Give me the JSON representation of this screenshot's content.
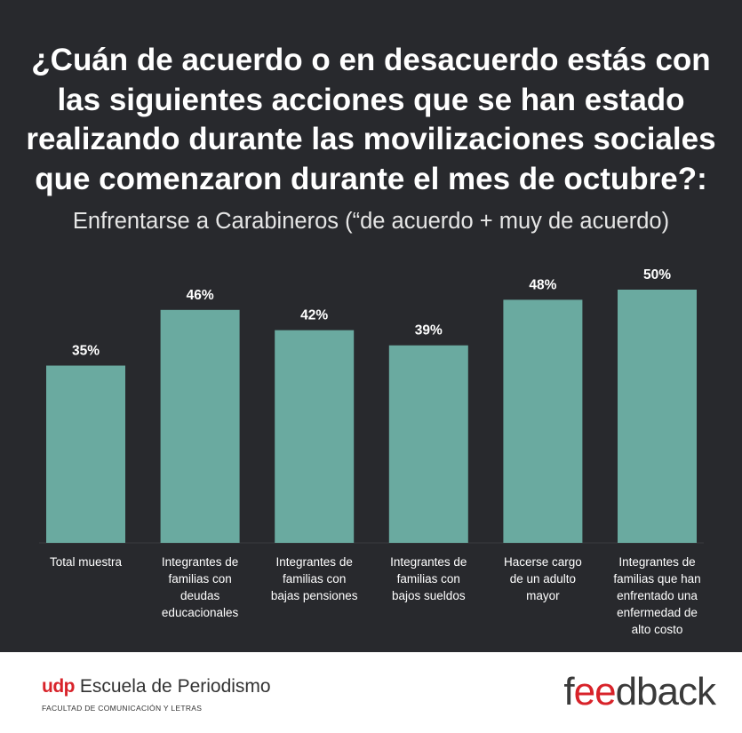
{
  "title": "¿Cuán de acuerdo o en desacuerdo estás con\nlas siguientes acciones que se han estado\nrealizando durante las movilizaciones sociales\nque comenzaron durante el mes de octubre?:",
  "subtitle": "Enfrentarse a Carabineros (“de acuerdo + muy de acuerdo)",
  "colors": {
    "background": "#28292d",
    "bar": "#6aaaa0",
    "accent": "#d8232a"
  },
  "chart_data": {
    "type": "bar",
    "title": "¿Cuán de acuerdo o en desacuerdo estás con las siguientes acciones que se han estado realizando durante las movilizaciones sociales que comenzaron durante el mes de octubre?:",
    "subtitle": "Enfrentarse a Carabineros (“de acuerdo + muy de acuerdo)",
    "categories": [
      "Total muestra",
      "Integrantes de\nfamilias con\ndeudas\neducacionales",
      "Integrantes de\nfamilias con\nbajas pensiones",
      "Integrantes de\nfamilias con\nbajos sueldos",
      "Hacerse cargo\nde un adulto\nmayor",
      "Integrantes de\nfamilias que han\nenfrentado una\nenfermedad de\nalto costo"
    ],
    "values": [
      35,
      46,
      42,
      39,
      48,
      50
    ],
    "value_labels": [
      "35%",
      "46%",
      "42%",
      "39%",
      "48%",
      "50%"
    ],
    "unit": "%",
    "ylim": [
      0,
      100
    ],
    "grid": false,
    "legend": "none"
  },
  "footer": {
    "udp_mark": "udp",
    "udp_name": "Escuela de Periodismo",
    "udp_faculty": "FACULTAD DE COMUNICACIÓN Y LETRAS",
    "feedback_part1": "f",
    "feedback_part2": "ee",
    "feedback_part3": "dback"
  }
}
